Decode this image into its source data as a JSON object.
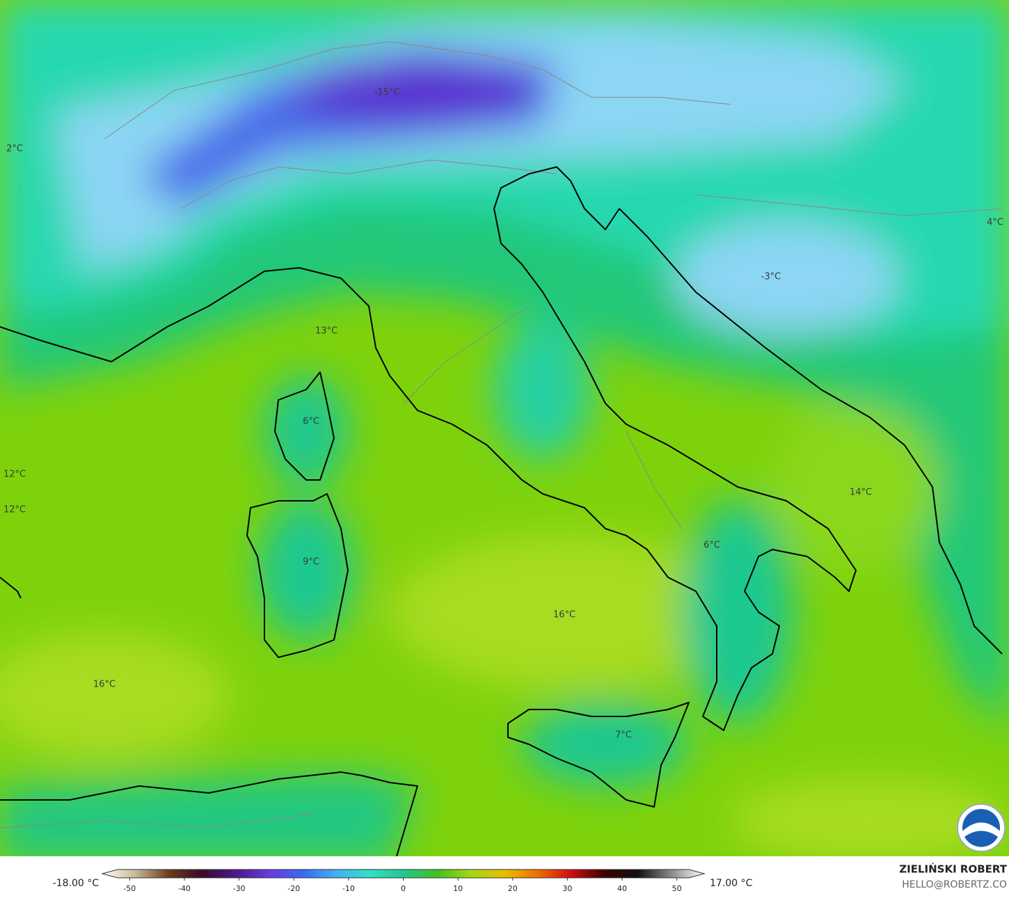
{
  "map_labels": [
    "-15°C",
    "2°C",
    "13°C",
    "6°C",
    "12°C",
    "12°C",
    "9°C",
    "16°C",
    "16°C",
    "7°C",
    "6°C",
    "14°C",
    "-3°C",
    "4°C"
  ],
  "colorbar": {
    "min_label": "-18.00 °C",
    "max_label": "17.00 °C",
    "range": [
      -55,
      55
    ],
    "ticks": [
      -50,
      -40,
      -30,
      -20,
      -10,
      0,
      10,
      20,
      30,
      40,
      50
    ],
    "colors": [
      "#fffdf0",
      "#c8b89a",
      "#6b3a1c",
      "#3a0a2a",
      "#4a1890",
      "#6a3ae0",
      "#3a6af0",
      "#40b0f8",
      "#30e0c8",
      "#20c890",
      "#40c020",
      "#a0d818",
      "#e8c000",
      "#f07000",
      "#d01010",
      "#400000",
      "#101010",
      "#888888",
      "#ffffff"
    ]
  },
  "credit": {
    "author": "ZIELIŃSKI ROBERT",
    "email": "HELLO@ROBERTZ.CO"
  }
}
